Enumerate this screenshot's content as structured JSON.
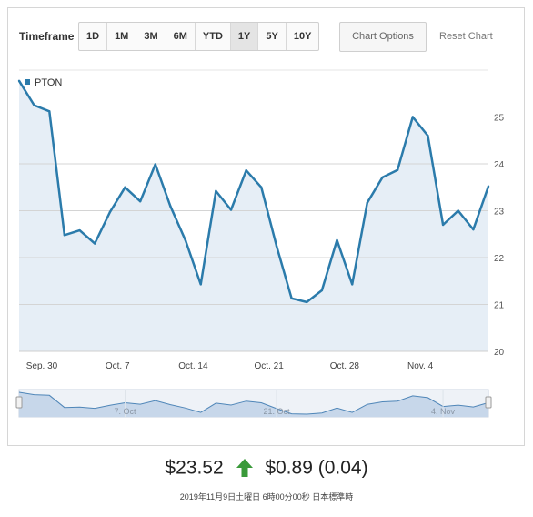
{
  "toolbar": {
    "timeframe_label": "Timeframe",
    "ranges": [
      "1D",
      "1M",
      "3M",
      "6M",
      "YTD",
      "1Y",
      "5Y",
      "10Y"
    ],
    "active_range": "1Y",
    "chart_options_label": "Chart Options",
    "reset_label": "Reset Chart"
  },
  "colors": {
    "line": "#2b7bab",
    "area": "#e6eef6",
    "nav_area": "#c7d7ea",
    "gain": "#3a9a3a"
  },
  "chart_data": {
    "type": "line",
    "series": [
      {
        "name": "PTON",
        "values": [
          25.77,
          25.25,
          25.12,
          22.48,
          22.58,
          22.3,
          22.97,
          23.5,
          23.2,
          23.99,
          23.09,
          22.36,
          21.43,
          23.42,
          23.02,
          23.86,
          23.5,
          22.25,
          21.13,
          21.05,
          21.3,
          22.37,
          21.43,
          23.17,
          23.71,
          23.87,
          25.0,
          24.6,
          22.7,
          23.0,
          22.6,
          23.52
        ]
      }
    ],
    "ylim": [
      20,
      26
    ],
    "yticks": [
      "20",
      "21",
      "22",
      "23",
      "24",
      "25"
    ],
    "x_labels": [
      "Sep. 30",
      "Oct. 7",
      "Oct. 14",
      "Oct. 21",
      "Oct. 28",
      "Nov. 4"
    ],
    "x_label_index": [
      1.5,
      6.5,
      11.5,
      16.5,
      21.5,
      26.5
    ],
    "navigator": {
      "labels": [
        "7. Oct",
        "21. Oct",
        "4. Nov"
      ],
      "label_index": [
        7,
        17,
        28
      ]
    },
    "grid": true,
    "legend": "top-left"
  },
  "quote": {
    "price": "$23.52",
    "change": "$0.89 (0.04)",
    "direction_icon": "arrow-up-icon",
    "timestamp": "2019年11月9日土曜日 6時00分00秒 日本標準時"
  }
}
